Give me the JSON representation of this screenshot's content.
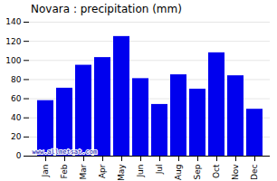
{
  "chart_data": {
    "type": "bar",
    "title": "Novara : precipitation (mm)",
    "categories": [
      "Jan",
      "Feb",
      "Mar",
      "Apr",
      "May",
      "Jun",
      "Jul",
      "Aug",
      "Sep",
      "Oct",
      "Nov",
      "Dec"
    ],
    "values": [
      58,
      71,
      95,
      103,
      125,
      81,
      54,
      85,
      70,
      108,
      84,
      49
    ],
    "color": "#0000ee",
    "ylim": [
      0,
      140
    ],
    "yticks": [
      0,
      20,
      40,
      60,
      80,
      100,
      120,
      140
    ],
    "grid": true,
    "annotations": [
      "www.allmetsat.com"
    ]
  }
}
